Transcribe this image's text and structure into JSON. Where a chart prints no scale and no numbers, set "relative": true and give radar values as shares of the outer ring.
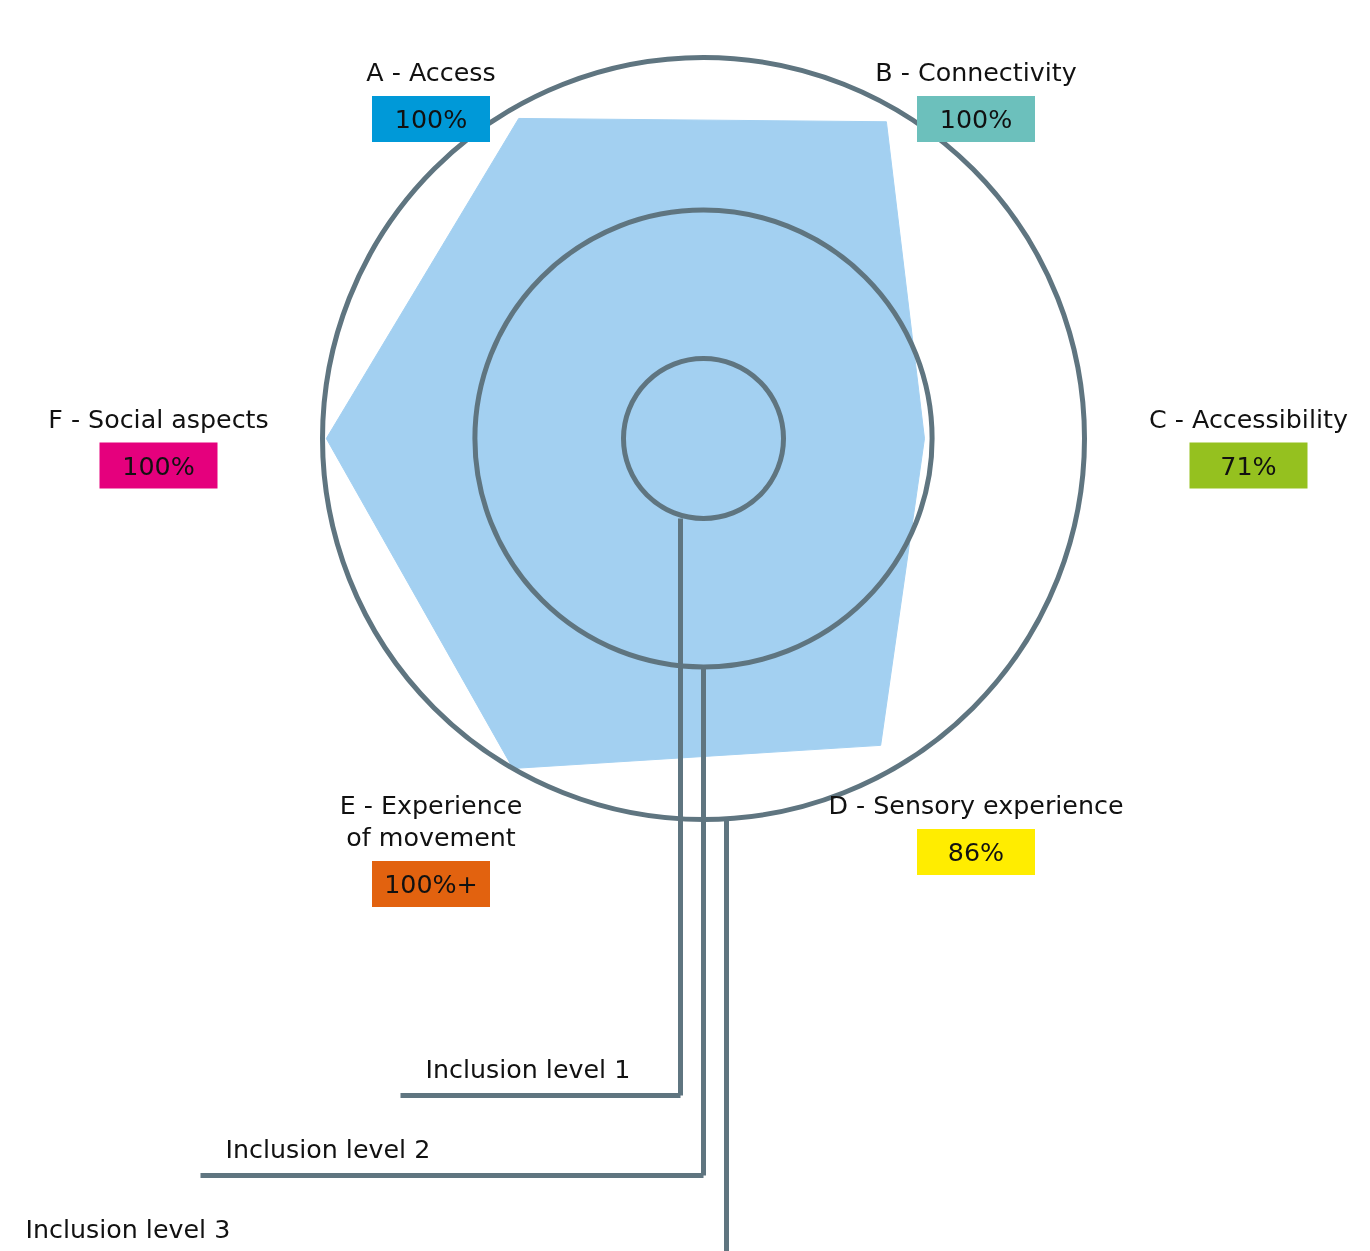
{
  "chart_data": {
    "type": "radar",
    "relative": true,
    "categories": [
      "A - Access",
      "B - Connectivity",
      "C - Accessibility",
      "D - Sensory experience",
      "E - Experience\nof movement",
      "F - Social aspects"
    ],
    "series": [
      {
        "color": "#a3d0f1",
        "values": [
          0.97,
          0.96,
          0.58,
          0.93,
          1.0,
          0.99
        ]
      }
    ],
    "value_labels": [
      "100%",
      "100%",
      "71%",
      "86%",
      "100%+",
      "100%"
    ],
    "colors": [
      "#0099d8",
      "#6cc0bc",
      "#95c11f",
      "#ffed00",
      "#e2620f",
      "#e5007d"
    ],
    "grid": true,
    "annotations": [
      "Inclusion level 1",
      "Inclusion level 2",
      "Inclusion level 3"
    ]
  }
}
